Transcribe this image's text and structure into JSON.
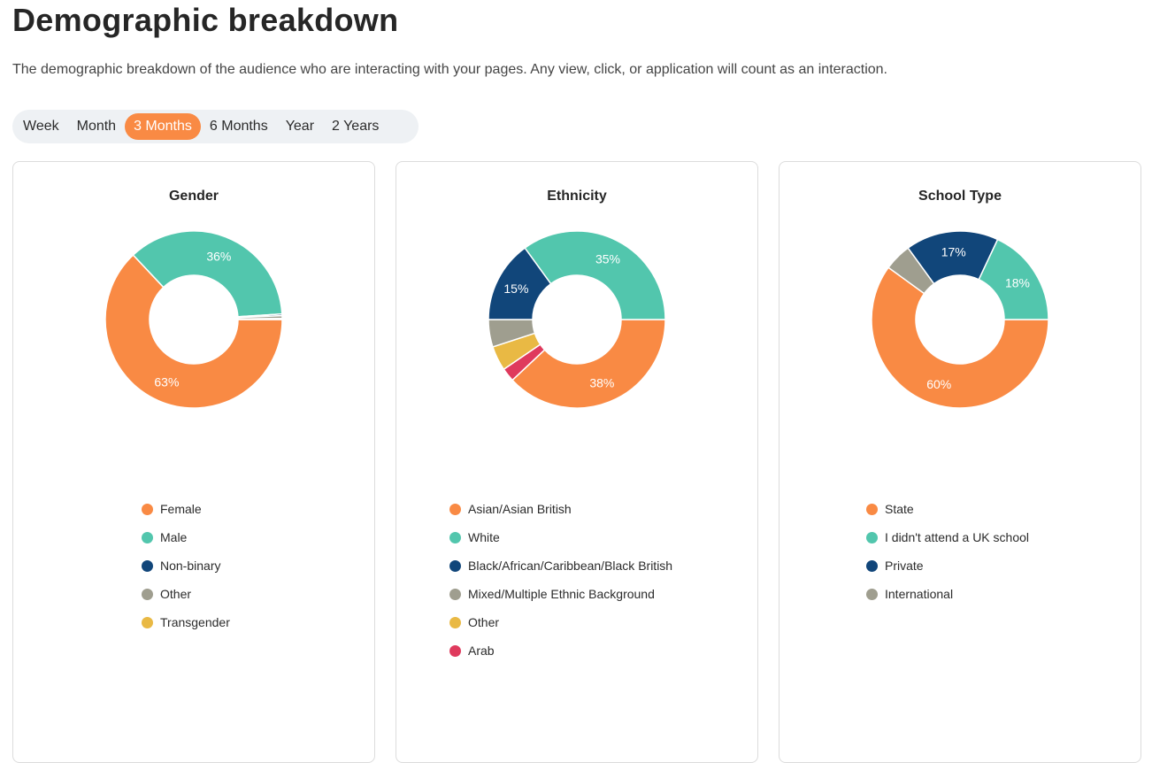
{
  "header": {
    "title": "Demographic breakdown",
    "description": "The demographic breakdown of the audience who are interacting with your pages. Any view, click, or application will count as an interaction."
  },
  "time_range": {
    "options": [
      "Week",
      "Month",
      "3 Months",
      "6 Months",
      "Year",
      "2 Years"
    ],
    "selected": "3 Months"
  },
  "colors": {
    "orange": "#f98a44",
    "teal": "#52c6ad",
    "navy": "#11467a",
    "gray": "#9f9e8f",
    "yellow": "#e9b944",
    "red": "#df3a5d"
  },
  "chart_data": [
    {
      "type": "pie",
      "title": "Gender",
      "categories": [
        "Female",
        "Male",
        "Non-binary",
        "Other",
        "Transgender"
      ],
      "values": [
        63,
        36,
        0.3,
        0.5,
        0.2
      ],
      "data_labels": [
        "63%",
        "36%",
        "",
        "",
        ""
      ],
      "colors": [
        "#f98a44",
        "#52c6ad",
        "#11467a",
        "#9f9e8f",
        "#e9b944"
      ],
      "legend_order": [
        "Female",
        "Male",
        "Non-binary",
        "Other",
        "Transgender"
      ]
    },
    {
      "type": "pie",
      "title": "Ethnicity",
      "categories": [
        "Asian/Asian British",
        "Arab",
        "Other",
        "Mixed/Multiple Ethnic Background",
        "Black/African/Caribbean/Black British",
        "White"
      ],
      "values": [
        38,
        2.5,
        4.5,
        5,
        15,
        35
      ],
      "data_labels": [
        "38%",
        "",
        "",
        "",
        "15%",
        "35%"
      ],
      "colors": [
        "#f98a44",
        "#df3a5d",
        "#e9b944",
        "#9f9e8f",
        "#11467a",
        "#52c6ad"
      ],
      "legend_order": [
        "Asian/Asian British",
        "White",
        "Black/African/Caribbean/Black British",
        "Mixed/Multiple Ethnic Background",
        "Other",
        "Arab"
      ]
    },
    {
      "type": "pie",
      "title": "School Type",
      "categories": [
        "State",
        "International",
        "Private",
        "I didn't attend a UK school"
      ],
      "values": [
        60,
        5,
        17,
        18
      ],
      "data_labels": [
        "60%",
        "",
        "17%",
        "18%"
      ],
      "colors": [
        "#f98a44",
        "#9f9e8f",
        "#11467a",
        "#52c6ad"
      ],
      "legend_order": [
        "State",
        "I didn't attend a UK school",
        "Private",
        "International"
      ]
    }
  ]
}
